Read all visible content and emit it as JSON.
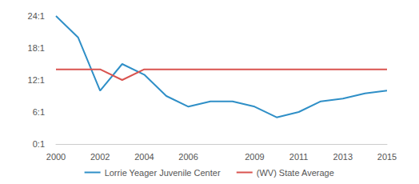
{
  "chart_data": {
    "type": "line",
    "categories": [
      "2000",
      null,
      "2002",
      null,
      "2004",
      null,
      "2006",
      null,
      null,
      "2009",
      null,
      "2011",
      null,
      "2013",
      null,
      "2015"
    ],
    "series": [
      {
        "name": "Lorrie Yeager Juvenile Center",
        "color": "#2f8fc7",
        "values": [
          24,
          20,
          10,
          15,
          13,
          9,
          7,
          8,
          8,
          7,
          5,
          6,
          8,
          8.5,
          9.5,
          10
        ]
      },
      {
        "name": "(WV) State Average",
        "color": "#d9534f",
        "values": [
          14,
          14,
          14,
          12,
          14,
          14,
          14,
          14,
          14,
          14,
          14,
          14,
          14,
          14,
          14,
          14
        ]
      }
    ],
    "ylim": [
      0,
      24
    ],
    "yticks": [
      {
        "value": 0,
        "label": "0:1"
      },
      {
        "value": 6,
        "label": "6:1"
      },
      {
        "value": 12,
        "label": "12:1"
      },
      {
        "value": 18,
        "label": "18:1"
      },
      {
        "value": 24,
        "label": "24:1"
      }
    ],
    "grid": false,
    "legend": "bottom"
  }
}
